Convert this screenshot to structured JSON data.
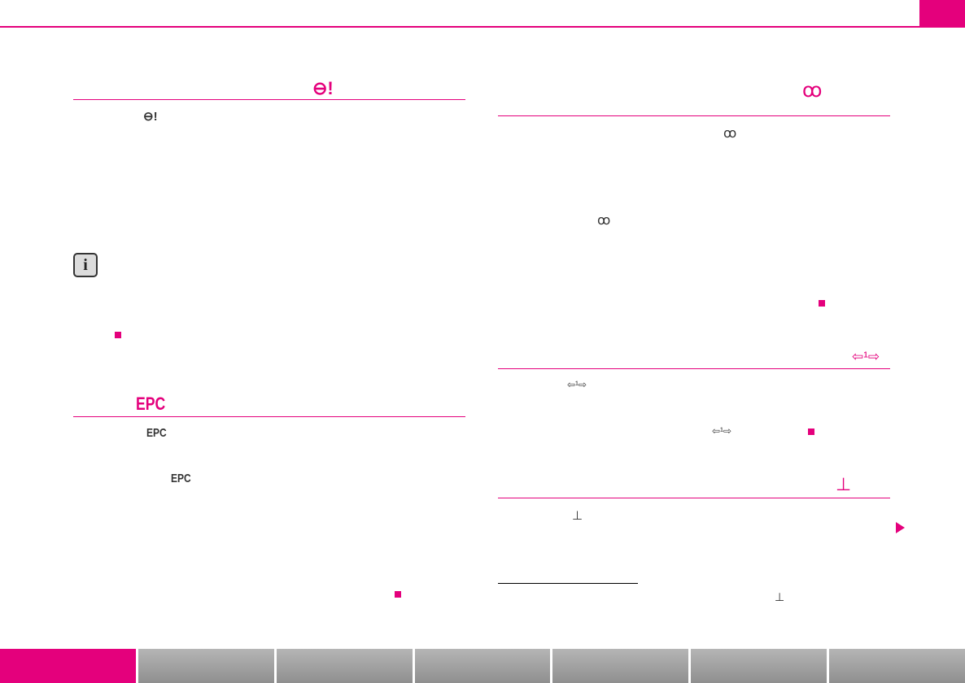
{
  "colors": {
    "accent": "#e4007c",
    "rule": "#e4007c",
    "footer_inactive": "#a3a3a3"
  },
  "icons": {
    "power_steering": "⊖!",
    "epc": "EPC",
    "glow_plug": "ꝏ",
    "turn_signal": "⇦¹⇨",
    "coolant": "⊥"
  },
  "info_box": {
    "label": "i"
  },
  "footer": {
    "tabs": [
      "",
      "",
      "",
      "",
      "",
      "",
      ""
    ]
  }
}
